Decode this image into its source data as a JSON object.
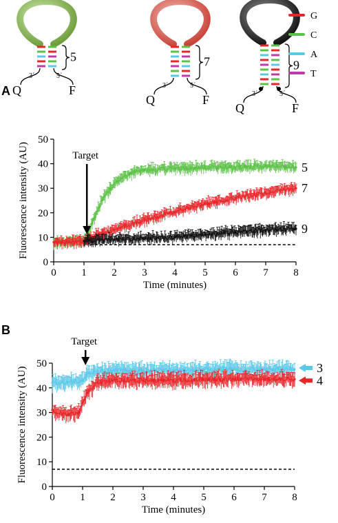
{
  "legend": {
    "items": [
      {
        "label": "G",
        "color": "#e8262a"
      },
      {
        "label": "C",
        "color": "#5cc247"
      },
      {
        "label": "A",
        "color": "#5bc8e8"
      },
      {
        "label": "T",
        "color": "#c03aa8"
      }
    ]
  },
  "hairpins": [
    {
      "stem_label": "5",
      "loop_color": "#8fbf5a",
      "pairs": 5
    },
    {
      "stem_label": "7",
      "loop_color": "#e06a5e",
      "pairs": 7
    },
    {
      "stem_label": "9",
      "loop_color": "#333333",
      "pairs": 9
    }
  ],
  "hairpin_labels": {
    "quencher": "Q",
    "fluorophore": "F",
    "three_prime": "3´",
    "five_prime": "5´"
  },
  "chart_data": [
    {
      "panel": "A",
      "type": "scatter",
      "xlabel": "Time (minutes)",
      "ylabel": "Fluorescence intensity (AU)",
      "xlim": [
        0,
        8
      ],
      "ylim": [
        0,
        50
      ],
      "x_ticks": [
        "0",
        "1",
        "2",
        "3",
        "4",
        "5",
        "6",
        "7",
        "8"
      ],
      "y_ticks": [
        "0",
        "10",
        "20",
        "30",
        "40",
        "50"
      ],
      "annotation": {
        "text": "Target",
        "x": 1.05
      },
      "baseline": 7,
      "series": [
        {
          "label": "5",
          "color": "#5cc247",
          "x": [
            0,
            0.5,
            1.0,
            1.1,
            1.3,
            1.6,
            2.0,
            2.5,
            3.0,
            4.0,
            5.0,
            6.0,
            7.0,
            8.0
          ],
          "y": [
            8,
            8,
            8,
            10,
            17,
            25,
            32,
            36,
            37.5,
            38,
            38.5,
            38.5,
            39,
            38.5
          ]
        },
        {
          "label": "7",
          "color": "#e8262a",
          "x": [
            0,
            0.5,
            1.0,
            1.2,
            1.5,
            2.0,
            3.0,
            4.0,
            5.0,
            6.0,
            7.0,
            8.0
          ],
          "y": [
            8,
            8,
            8.5,
            9.5,
            11,
            13,
            17,
            20.5,
            23.5,
            26,
            28,
            30
          ]
        },
        {
          "label": "9",
          "color": "#111111",
          "x": [
            1.0,
            2.0,
            3.0,
            4.0,
            5.0,
            6.0,
            7.0,
            8.0
          ],
          "y": [
            8.5,
            9,
            9.5,
            10,
            11,
            12,
            13,
            13.5
          ]
        }
      ]
    },
    {
      "panel": "B",
      "type": "scatter",
      "xlabel": "Time (minutes)",
      "ylabel": "Fluorescence intensity (AU)",
      "xlim": [
        0,
        8
      ],
      "ylim": [
        0,
        50
      ],
      "x_ticks": [
        "0",
        "1",
        "2",
        "3",
        "4",
        "5",
        "6",
        "7",
        "8"
      ],
      "y_ticks": [
        "0",
        "10",
        "20",
        "30",
        "40",
        "50"
      ],
      "annotation": {
        "text": "Target",
        "x": 1.05
      },
      "baseline": 7,
      "series": [
        {
          "label": "3",
          "color": "#5bc8e8",
          "x": [
            0,
            0.5,
            1.0,
            1.2,
            2.0,
            3.0,
            4.0,
            5.0,
            6.0,
            7.0,
            8.0
          ],
          "y": [
            42,
            42,
            43,
            46,
            47,
            47,
            47,
            47.5,
            47.5,
            47.5,
            47.5
          ]
        },
        {
          "label": "4",
          "color": "#e8262a",
          "x": [
            0,
            0.5,
            0.9,
            1.0,
            1.2,
            1.5,
            2.0,
            3.0,
            4.0,
            5.0,
            6.0,
            7.0,
            8.0
          ],
          "y": [
            31,
            29,
            30,
            34,
            39,
            42,
            43,
            43,
            43,
            43.5,
            43.5,
            43.5,
            43.5
          ]
        }
      ]
    }
  ],
  "panel_letters": [
    "A",
    "B"
  ]
}
